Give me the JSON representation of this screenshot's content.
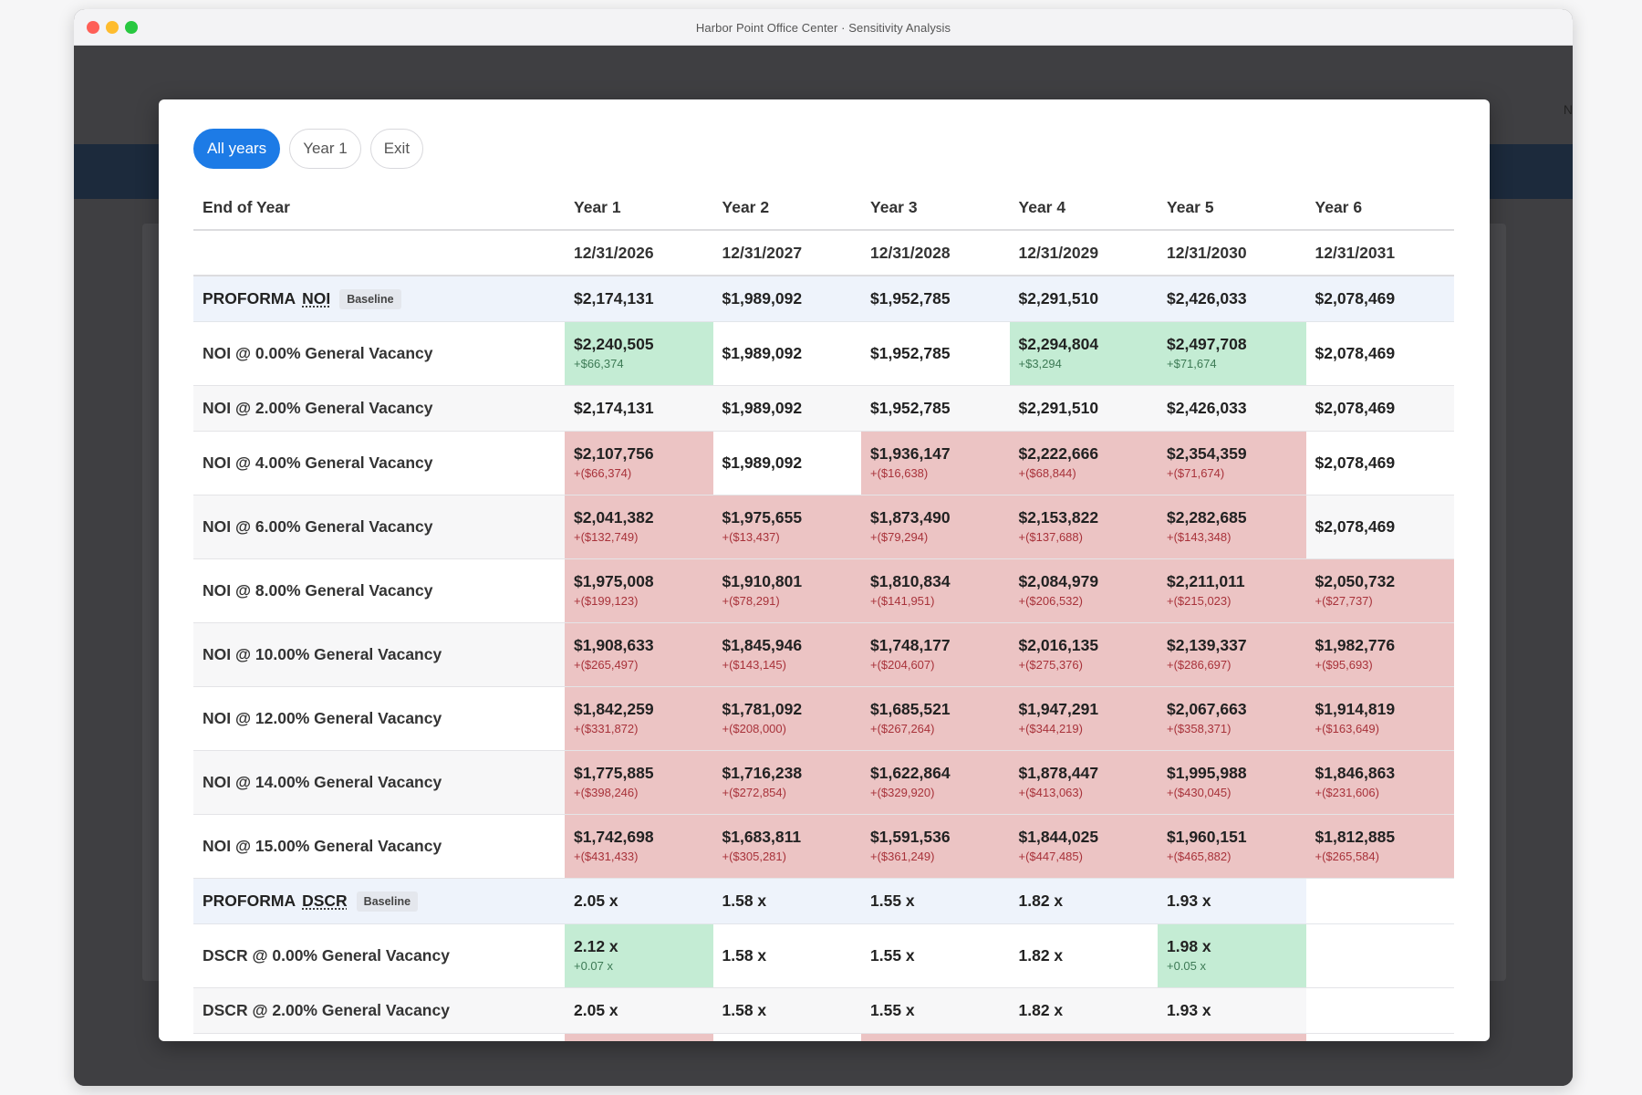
{
  "window": {
    "title": "Harbor Point Office Center · Sensitivity Analysis"
  },
  "app_corner_text": "N",
  "filters": [
    {
      "label": "All years",
      "active": true
    },
    {
      "label": "Year 1",
      "active": false
    },
    {
      "label": "Exit",
      "active": false
    }
  ],
  "table": {
    "header_label": "End of Year",
    "years": [
      "Year 1",
      "Year 2",
      "Year 3",
      "Year 4",
      "Year 5",
      "Year 6"
    ],
    "dates": [
      "12/31/2026",
      "12/31/2027",
      "12/31/2028",
      "12/31/2029",
      "12/31/2030",
      "12/31/2031"
    ],
    "noi_baseline": {
      "prefix": "PROFORMA",
      "abbr": "NOI",
      "badge": "Baseline",
      "values": [
        "$2,174,131",
        "$1,989,092",
        "$1,952,785",
        "$2,291,510",
        "$2,426,033",
        "$2,078,469"
      ]
    },
    "noi_rows": [
      {
        "label": "NOI @ 0.00% General Vacancy",
        "cells": [
          {
            "v": "$2,240,505",
            "d": "+$66,374",
            "s": "pos"
          },
          {
            "v": "$1,989,092",
            "d": "",
            "s": "none"
          },
          {
            "v": "$1,952,785",
            "d": "",
            "s": "none"
          },
          {
            "v": "$2,294,804",
            "d": "+$3,294",
            "s": "pos"
          },
          {
            "v": "$2,497,708",
            "d": "+$71,674",
            "s": "pos"
          },
          {
            "v": "$2,078,469",
            "d": "",
            "s": "none"
          }
        ]
      },
      {
        "label": "NOI @ 2.00% General Vacancy",
        "short": true,
        "cells": [
          {
            "v": "$2,174,131",
            "d": "",
            "s": "none"
          },
          {
            "v": "$1,989,092",
            "d": "",
            "s": "none"
          },
          {
            "v": "$1,952,785",
            "d": "",
            "s": "none"
          },
          {
            "v": "$2,291,510",
            "d": "",
            "s": "none"
          },
          {
            "v": "$2,426,033",
            "d": "",
            "s": "none"
          },
          {
            "v": "$2,078,469",
            "d": "",
            "s": "none"
          }
        ]
      },
      {
        "label": "NOI @ 4.00% General Vacancy",
        "cells": [
          {
            "v": "$2,107,756",
            "d": "+($66,374)",
            "s": "neg"
          },
          {
            "v": "$1,989,092",
            "d": "",
            "s": "none"
          },
          {
            "v": "$1,936,147",
            "d": "+($16,638)",
            "s": "neg"
          },
          {
            "v": "$2,222,666",
            "d": "+($68,844)",
            "s": "neg"
          },
          {
            "v": "$2,354,359",
            "d": "+($71,674)",
            "s": "neg"
          },
          {
            "v": "$2,078,469",
            "d": "",
            "s": "none"
          }
        ]
      },
      {
        "label": "NOI @ 6.00% General Vacancy",
        "cells": [
          {
            "v": "$2,041,382",
            "d": "+($132,749)",
            "s": "neg"
          },
          {
            "v": "$1,975,655",
            "d": "+($13,437)",
            "s": "neg"
          },
          {
            "v": "$1,873,490",
            "d": "+($79,294)",
            "s": "neg"
          },
          {
            "v": "$2,153,822",
            "d": "+($137,688)",
            "s": "neg"
          },
          {
            "v": "$2,282,685",
            "d": "+($143,348)",
            "s": "neg"
          },
          {
            "v": "$2,078,469",
            "d": "",
            "s": "none"
          }
        ]
      },
      {
        "label": "NOI @ 8.00% General Vacancy",
        "cells": [
          {
            "v": "$1,975,008",
            "d": "+($199,123)",
            "s": "neg"
          },
          {
            "v": "$1,910,801",
            "d": "+($78,291)",
            "s": "neg"
          },
          {
            "v": "$1,810,834",
            "d": "+($141,951)",
            "s": "neg"
          },
          {
            "v": "$2,084,979",
            "d": "+($206,532)",
            "s": "neg"
          },
          {
            "v": "$2,211,011",
            "d": "+($215,023)",
            "s": "neg"
          },
          {
            "v": "$2,050,732",
            "d": "+($27,737)",
            "s": "neg"
          }
        ]
      },
      {
        "label": "NOI @ 10.00% General Vacancy",
        "cells": [
          {
            "v": "$1,908,633",
            "d": "+($265,497)",
            "s": "neg"
          },
          {
            "v": "$1,845,946",
            "d": "+($143,145)",
            "s": "neg"
          },
          {
            "v": "$1,748,177",
            "d": "+($204,607)",
            "s": "neg"
          },
          {
            "v": "$2,016,135",
            "d": "+($275,376)",
            "s": "neg"
          },
          {
            "v": "$2,139,337",
            "d": "+($286,697)",
            "s": "neg"
          },
          {
            "v": "$1,982,776",
            "d": "+($95,693)",
            "s": "neg"
          }
        ]
      },
      {
        "label": "NOI @ 12.00% General Vacancy",
        "cells": [
          {
            "v": "$1,842,259",
            "d": "+($331,872)",
            "s": "neg"
          },
          {
            "v": "$1,781,092",
            "d": "+($208,000)",
            "s": "neg"
          },
          {
            "v": "$1,685,521",
            "d": "+($267,264)",
            "s": "neg"
          },
          {
            "v": "$1,947,291",
            "d": "+($344,219)",
            "s": "neg"
          },
          {
            "v": "$2,067,663",
            "d": "+($358,371)",
            "s": "neg"
          },
          {
            "v": "$1,914,819",
            "d": "+($163,649)",
            "s": "neg"
          }
        ]
      },
      {
        "label": "NOI @ 14.00% General Vacancy",
        "cells": [
          {
            "v": "$1,775,885",
            "d": "+($398,246)",
            "s": "neg"
          },
          {
            "v": "$1,716,238",
            "d": "+($272,854)",
            "s": "neg"
          },
          {
            "v": "$1,622,864",
            "d": "+($329,920)",
            "s": "neg"
          },
          {
            "v": "$1,878,447",
            "d": "+($413,063)",
            "s": "neg"
          },
          {
            "v": "$1,995,988",
            "d": "+($430,045)",
            "s": "neg"
          },
          {
            "v": "$1,846,863",
            "d": "+($231,606)",
            "s": "neg"
          }
        ]
      },
      {
        "label": "NOI @ 15.00% General Vacancy",
        "cells": [
          {
            "v": "$1,742,698",
            "d": "+($431,433)",
            "s": "neg"
          },
          {
            "v": "$1,683,811",
            "d": "+($305,281)",
            "s": "neg"
          },
          {
            "v": "$1,591,536",
            "d": "+($361,249)",
            "s": "neg"
          },
          {
            "v": "$1,844,025",
            "d": "+($447,485)",
            "s": "neg"
          },
          {
            "v": "$1,960,151",
            "d": "+($465,882)",
            "s": "neg"
          },
          {
            "v": "$1,812,885",
            "d": "+($265,584)",
            "s": "neg"
          }
        ]
      }
    ],
    "dscr_baseline": {
      "prefix": "PROFORMA",
      "abbr": "DSCR",
      "badge": "Baseline",
      "values": [
        "2.05 x",
        "1.58 x",
        "1.55 x",
        "1.82 x",
        "1.93 x",
        ""
      ]
    },
    "dscr_rows": [
      {
        "label": "DSCR @ 0.00% General Vacancy",
        "cells": [
          {
            "v": "2.12 x",
            "d": "+0.07 x",
            "s": "pos"
          },
          {
            "v": "1.58 x",
            "d": "",
            "s": "none"
          },
          {
            "v": "1.55 x",
            "d": "",
            "s": "none"
          },
          {
            "v": "1.82 x",
            "d": "",
            "s": "none"
          },
          {
            "v": "1.98 x",
            "d": "+0.05 x",
            "s": "pos"
          },
          {
            "v": "",
            "d": "",
            "s": "blank"
          }
        ]
      },
      {
        "label": "DSCR @ 2.00% General Vacancy",
        "short": true,
        "cells": [
          {
            "v": "2.05 x",
            "d": "",
            "s": "none"
          },
          {
            "v": "1.58 x",
            "d": "",
            "s": "none"
          },
          {
            "v": "1.55 x",
            "d": "",
            "s": "none"
          },
          {
            "v": "1.82 x",
            "d": "",
            "s": "none"
          },
          {
            "v": "1.93 x",
            "d": "",
            "s": "none"
          },
          {
            "v": "",
            "d": "",
            "s": "blank"
          }
        ]
      },
      {
        "label": "",
        "cells": [
          {
            "v": "",
            "d": "",
            "s": "neg"
          },
          {
            "v": "",
            "d": "",
            "s": "none"
          },
          {
            "v": "",
            "d": "",
            "s": "neg"
          },
          {
            "v": "",
            "d": "",
            "s": "neg"
          },
          {
            "v": "",
            "d": "",
            "s": "neg"
          },
          {
            "v": "",
            "d": "",
            "s": "blank"
          }
        ]
      }
    ]
  }
}
